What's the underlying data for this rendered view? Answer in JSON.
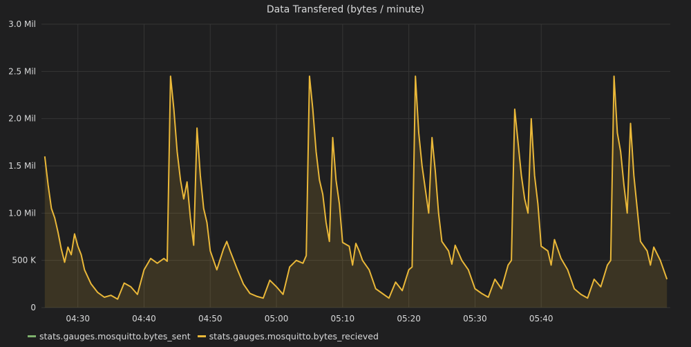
{
  "panel": {
    "title": "Data Transfered (bytes / minute)"
  },
  "legend": {
    "items": [
      {
        "label": "stats.gauges.mosquitto.bytes_sent",
        "color": "#7eb26d"
      },
      {
        "label": "stats.gauges.mosquitto.bytes_recieved",
        "color": "#eab839"
      }
    ]
  },
  "chart_data": {
    "type": "area",
    "title": "Data Transfered (bytes / minute)",
    "xlabel": "",
    "ylabel": "",
    "x_tick_labels": [
      "04:30",
      "04:40",
      "04:50",
      "05:00",
      "05:10",
      "05:20",
      "05:30",
      "05:40"
    ],
    "y_tick_labels": [
      "0",
      "500 K",
      "1.0 Mil",
      "1.5 Mil",
      "2.0 Mil",
      "2.5 Mil",
      "3.0 Mil"
    ],
    "ylim": [
      0,
      3000000
    ],
    "grid": true,
    "legend_position": "bottom-left",
    "series": [
      {
        "name": "stats.gauges.mosquitto.bytes_sent",
        "color": "#7eb26d",
        "points": []
      },
      {
        "name": "stats.gauges.mosquitto.bytes_recieved",
        "color": "#eab839",
        "points": [
          [
            "04:25",
            1600000
          ],
          [
            "04:25:30",
            1300000
          ],
          [
            "04:26",
            1050000
          ],
          [
            "04:26:30",
            950000
          ],
          [
            "04:27",
            800000
          ],
          [
            "04:27:30",
            620000
          ],
          [
            "04:28",
            480000
          ],
          [
            "04:28:30",
            640000
          ],
          [
            "04:29",
            560000
          ],
          [
            "04:29:30",
            780000
          ],
          [
            "04:30",
            650000
          ],
          [
            "04:30:30",
            560000
          ],
          [
            "04:31",
            400000
          ],
          [
            "04:32",
            250000
          ],
          [
            "04:33",
            160000
          ],
          [
            "04:34",
            110000
          ],
          [
            "04:35",
            130000
          ],
          [
            "04:36",
            90000
          ],
          [
            "04:37",
            260000
          ],
          [
            "04:38",
            220000
          ],
          [
            "04:39",
            140000
          ],
          [
            "04:40",
            400000
          ],
          [
            "04:41",
            520000
          ],
          [
            "04:42",
            470000
          ],
          [
            "04:43",
            520000
          ],
          [
            "04:43:30",
            490000
          ],
          [
            "04:44",
            2450000
          ],
          [
            "04:44:30",
            2100000
          ],
          [
            "04:45",
            1650000
          ],
          [
            "04:45:30",
            1350000
          ],
          [
            "04:46",
            1150000
          ],
          [
            "04:46:30",
            1330000
          ],
          [
            "04:47",
            950000
          ],
          [
            "04:47:30",
            660000
          ],
          [
            "04:48",
            1900000
          ],
          [
            "04:48:30",
            1400000
          ],
          [
            "04:49",
            1050000
          ],
          [
            "04:49:30",
            900000
          ],
          [
            "04:50",
            600000
          ],
          [
            "04:51",
            400000
          ],
          [
            "04:52",
            620000
          ],
          [
            "04:52:30",
            700000
          ],
          [
            "04:53",
            600000
          ],
          [
            "04:54",
            420000
          ],
          [
            "04:55",
            250000
          ],
          [
            "04:56",
            150000
          ],
          [
            "04:57",
            120000
          ],
          [
            "04:58",
            100000
          ],
          [
            "04:59",
            290000
          ],
          [
            "05:00",
            220000
          ],
          [
            "05:01",
            140000
          ],
          [
            "05:02",
            430000
          ],
          [
            "05:03",
            500000
          ],
          [
            "05:04",
            470000
          ],
          [
            "05:04:30",
            550000
          ],
          [
            "05:05",
            2450000
          ],
          [
            "05:05:30",
            2100000
          ],
          [
            "05:06",
            1650000
          ],
          [
            "05:06:30",
            1350000
          ],
          [
            "05:07",
            1200000
          ],
          [
            "05:07:30",
            900000
          ],
          [
            "05:08",
            700000
          ],
          [
            "05:08:30",
            1800000
          ],
          [
            "05:09",
            1350000
          ],
          [
            "05:09:30",
            1100000
          ],
          [
            "05:10",
            690000
          ],
          [
            "05:11",
            650000
          ],
          [
            "05:11:30",
            450000
          ],
          [
            "05:12",
            680000
          ],
          [
            "05:12:30",
            600000
          ],
          [
            "05:13",
            500000
          ],
          [
            "05:14",
            400000
          ],
          [
            "05:15",
            200000
          ],
          [
            "05:16",
            150000
          ],
          [
            "05:17",
            100000
          ],
          [
            "05:18",
            270000
          ],
          [
            "05:19",
            180000
          ],
          [
            "05:20",
            400000
          ],
          [
            "05:20:30",
            430000
          ],
          [
            "05:21",
            2450000
          ],
          [
            "05:21:30",
            1850000
          ],
          [
            "05:22",
            1500000
          ],
          [
            "05:22:30",
            1250000
          ],
          [
            "05:23",
            1000000
          ],
          [
            "05:23:30",
            1800000
          ],
          [
            "05:24",
            1450000
          ],
          [
            "05:24:30",
            1000000
          ],
          [
            "05:25",
            700000
          ],
          [
            "05:26",
            600000
          ],
          [
            "05:26:30",
            460000
          ],
          [
            "05:27",
            660000
          ],
          [
            "05:28",
            500000
          ],
          [
            "05:29",
            400000
          ],
          [
            "05:30",
            200000
          ],
          [
            "05:31",
            150000
          ],
          [
            "05:32",
            110000
          ],
          [
            "05:33",
            300000
          ],
          [
            "05:34",
            200000
          ],
          [
            "05:35",
            450000
          ],
          [
            "05:35:30",
            500000
          ],
          [
            "05:36",
            2100000
          ],
          [
            "05:36:30",
            1750000
          ],
          [
            "05:37",
            1400000
          ],
          [
            "05:37:30",
            1150000
          ],
          [
            "05:38",
            1000000
          ],
          [
            "05:38:30",
            2000000
          ],
          [
            "05:39",
            1400000
          ],
          [
            "05:39:30",
            1100000
          ],
          [
            "05:40",
            650000
          ],
          [
            "05:41",
            600000
          ],
          [
            "05:41:30",
            450000
          ],
          [
            "05:42",
            720000
          ],
          [
            "05:43",
            520000
          ],
          [
            "05:44",
            400000
          ],
          [
            "05:45",
            200000
          ],
          [
            "05:46",
            140000
          ],
          [
            "05:47",
            100000
          ],
          [
            "05:48",
            300000
          ],
          [
            "05:49",
            220000
          ],
          [
            "05:50",
            450000
          ],
          [
            "05:50:30",
            500000
          ],
          [
            "05:51",
            2450000
          ],
          [
            "05:51:30",
            1850000
          ],
          [
            "05:52",
            1650000
          ],
          [
            "05:52:30",
            1300000
          ],
          [
            "05:53",
            1000000
          ],
          [
            "05:53:30",
            1950000
          ],
          [
            "05:54",
            1400000
          ],
          [
            "05:54:30",
            1050000
          ],
          [
            "05:55",
            700000
          ],
          [
            "05:56",
            600000
          ],
          [
            "05:56:30",
            450000
          ],
          [
            "05:57",
            640000
          ],
          [
            "05:58",
            500000
          ],
          [
            "05:59",
            300000
          ]
        ]
      }
    ]
  }
}
